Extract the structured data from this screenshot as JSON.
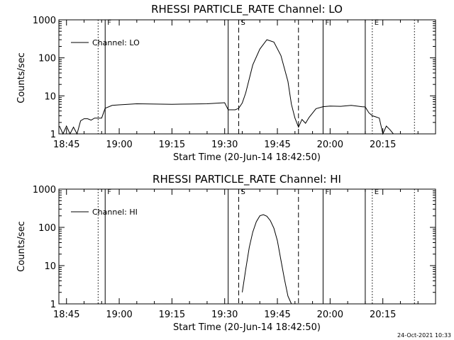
{
  "footer_timestamp": "24-Oct-2021 10:33",
  "chart_data": [
    {
      "type": "line",
      "title": "RHESSI PARTICLE_RATE Channel: LO",
      "xlabel": "Start Time (20-Jun-14 18:42:50)",
      "ylabel": "Counts/sec",
      "yscale": "log",
      "ylim": [
        1,
        1000
      ],
      "y_tick_labels": [
        "1",
        "10",
        "100",
        "1000"
      ],
      "x_tick_labels": [
        "18:45",
        "19:00",
        "19:15",
        "19:30",
        "19:45",
        "20:00",
        "20:15"
      ],
      "legend": {
        "label": "Channel: LO",
        "placement": "top-left"
      },
      "markers": [
        {
          "time": "18:54",
          "style": "dotted",
          "label": ""
        },
        {
          "time": "18:56",
          "style": "solid",
          "label": "F"
        },
        {
          "time": "19:31",
          "style": "solid",
          "label": ""
        },
        {
          "time": "19:34",
          "style": "dashed",
          "label": "S"
        },
        {
          "time": "19:51",
          "style": "dashed",
          "label": ""
        },
        {
          "time": "19:58",
          "style": "solid",
          "label": "F"
        },
        {
          "time": "20:10",
          "style": "solid",
          "label": ""
        },
        {
          "time": "20:12",
          "style": "dotted",
          "label": "E"
        },
        {
          "time": "20:24",
          "style": "dotted",
          "label": ""
        }
      ],
      "x": [
        "18:43",
        "18:44",
        "18:45",
        "18:46",
        "18:47",
        "18:48",
        "18:49",
        "18:50",
        "18:51",
        "18:52",
        "18:53",
        "18:54",
        "18:55",
        "18:56",
        "18:58",
        "19:00",
        "19:05",
        "19:10",
        "19:15",
        "19:20",
        "19:25",
        "19:30",
        "19:31",
        "19:33",
        "19:34",
        "19:35",
        "19:36",
        "19:37",
        "19:38",
        "19:40",
        "19:42",
        "19:44",
        "19:46",
        "19:48",
        "19:49",
        "19:50",
        "19:51",
        "19:52",
        "19:53",
        "19:54",
        "19:56",
        "19:58",
        "20:00",
        "20:03",
        "20:06",
        "20:09",
        "20:10",
        "20:11",
        "20:12",
        "20:13",
        "20:14",
        "20:15",
        "20:16",
        "20:17",
        "20:18"
      ],
      "values": [
        1.6,
        1.0,
        1.6,
        1.0,
        1.5,
        1.0,
        2.2,
        2.5,
        2.5,
        2.3,
        2.6,
        2.6,
        2.6,
        4.7,
        5.6,
        5.8,
        6.2,
        6.1,
        6.0,
        6.1,
        6.2,
        6.6,
        4.3,
        4.3,
        4.7,
        6.5,
        12,
        28,
        65,
        170,
        300,
        260,
        115,
        24,
        6.0,
        2.6,
        1.5,
        2.4,
        1.9,
        2.7,
        4.6,
        5.2,
        5.4,
        5.3,
        5.6,
        5.2,
        5.1,
        3.6,
        3.0,
        2.8,
        2.6,
        1.0,
        1.6,
        1.3,
        1.0
      ]
    },
    {
      "type": "line",
      "title": "RHESSI PARTICLE_RATE Channel: HI",
      "xlabel": "Start Time (20-Jun-14 18:42:50)",
      "ylabel": "Counts/sec",
      "yscale": "log",
      "ylim": [
        1,
        1000
      ],
      "y_tick_labels": [
        "1",
        "10",
        "100",
        "1000"
      ],
      "x_tick_labels": [
        "18:45",
        "19:00",
        "19:15",
        "19:30",
        "19:45",
        "20:00",
        "20:15"
      ],
      "legend": {
        "label": "Channel: HI",
        "placement": "top-left"
      },
      "markers": [
        {
          "time": "18:54",
          "style": "dotted",
          "label": ""
        },
        {
          "time": "18:56",
          "style": "solid",
          "label": "F"
        },
        {
          "time": "19:31",
          "style": "solid",
          "label": ""
        },
        {
          "time": "19:34",
          "style": "dashed",
          "label": "S"
        },
        {
          "time": "19:51",
          "style": "dashed",
          "label": ""
        },
        {
          "time": "19:58",
          "style": "solid",
          "label": "F"
        },
        {
          "time": "20:10",
          "style": "solid",
          "label": ""
        },
        {
          "time": "20:12",
          "style": "dotted",
          "label": "E"
        },
        {
          "time": "20:24",
          "style": "dotted",
          "label": ""
        }
      ],
      "x": [
        "19:35",
        "19:36",
        "19:37",
        "19:38",
        "19:39",
        "19:40",
        "19:41",
        "19:42",
        "19:43",
        "19:44",
        "19:45",
        "19:46",
        "19:47",
        "19:48",
        "19:49"
      ],
      "values": [
        2.0,
        8,
        30,
        75,
        140,
        200,
        215,
        195,
        150,
        95,
        45,
        14,
        4.5,
        1.6,
        1.0
      ]
    }
  ]
}
